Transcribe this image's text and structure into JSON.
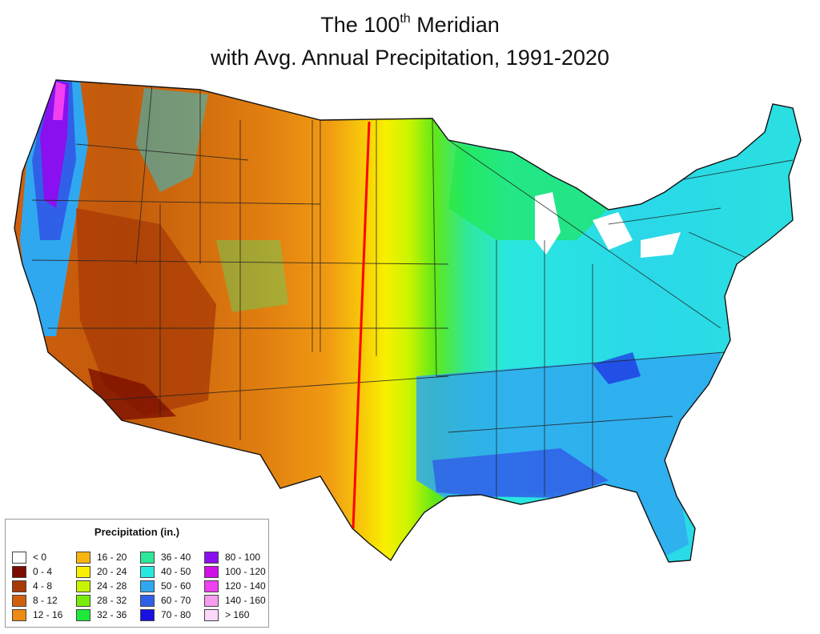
{
  "title": {
    "line1_prefix": "The 100",
    "line1_sup": "th",
    "line1_suffix": " Meridian",
    "line2": "with Avg. Annual Precipitation, 1991-2020"
  },
  "legend": {
    "title": "Precipitation (in.)",
    "items": [
      {
        "label": "< 0",
        "color": "#ffffff"
      },
      {
        "label": "0 - 4",
        "color": "#7a0c00"
      },
      {
        "label": "4 - 8",
        "color": "#a83a05"
      },
      {
        "label": "8 - 12",
        "color": "#d0600e"
      },
      {
        "label": "12 - 16",
        "color": "#ec8a12"
      },
      {
        "label": "16 - 20",
        "color": "#f8b40e"
      },
      {
        "label": "20 - 24",
        "color": "#f8f000"
      },
      {
        "label": "24 - 28",
        "color": "#c8f400"
      },
      {
        "label": "28 - 32",
        "color": "#78ec08"
      },
      {
        "label": "32 - 36",
        "color": "#1ee83a"
      },
      {
        "label": "36 - 40",
        "color": "#2ee89a"
      },
      {
        "label": "40 - 50",
        "color": "#2ae8e0"
      },
      {
        "label": "50 - 60",
        "color": "#30a8f0"
      },
      {
        "label": "60 - 70",
        "color": "#3060e8"
      },
      {
        "label": "70 - 80",
        "color": "#1a10e0"
      },
      {
        "label": "80 - 100",
        "color": "#8a10f0"
      },
      {
        "label": "100 - 120",
        "color": "#d010e8"
      },
      {
        "label": "120 - 140",
        "color": "#f040f0"
      },
      {
        "label": "140 - 160",
        "color": "#f89cf0"
      },
      {
        "label": "> 160",
        "color": "#fcd8fa"
      }
    ]
  },
  "meridian_color": "#ff0000"
}
